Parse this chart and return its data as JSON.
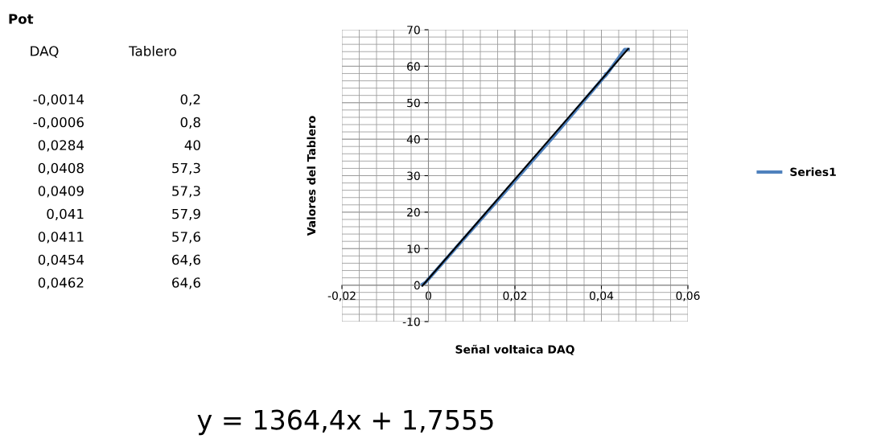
{
  "chart_data": {
    "type": "line",
    "xlabel": "Señal voltaica DAQ",
    "ylabel": "Valores del Tablero",
    "x": [
      -0.0014,
      -0.0006,
      0.0284,
      0.0408,
      0.0409,
      0.041,
      0.0411,
      0.0454,
      0.0462
    ],
    "series": [
      {
        "name": "Series1",
        "color": "#4f81bd",
        "values": [
          0.2,
          0.8,
          40,
          57.3,
          57.3,
          57.9,
          57.6,
          64.6,
          64.6
        ]
      },
      {
        "type": "line",
        "color": "#000000",
        "x": [
          -0.0014,
          0.0462
        ],
        "values": [
          -0.2,
          64.8
        ]
      }
    ],
    "xlim": [
      -0.02,
      0.06
    ],
    "xticks": [
      {
        "value": -0.02,
        "label": "-0,02"
      },
      0,
      {
        "value": 0.02,
        "label": "0,02"
      },
      {
        "value": 0.04,
        "label": "0,04"
      },
      {
        "value": 0.06,
        "label": "0,06"
      }
    ],
    "ylim": [
      -10,
      70
    ],
    "yticks": [
      -10,
      0,
      10,
      20,
      30,
      40,
      50,
      60,
      70
    ],
    "grid": true,
    "legend": "right",
    "marker": "none",
    "line_style": "solid",
    "annotations": [
      "Pot",
      "DAQ",
      "Tablero",
      "y = 1364,4x + 1,7555",
      "-0,0014",
      "0,2",
      "-0,0006",
      "0,8",
      "0,0284",
      "40",
      "0,0408",
      "57,3",
      "0,0409",
      "57,3",
      "0,041",
      "57,9",
      "0,0411",
      "57,6",
      "0,0454",
      "64,6",
      "0,0462",
      "64,6"
    ]
  }
}
